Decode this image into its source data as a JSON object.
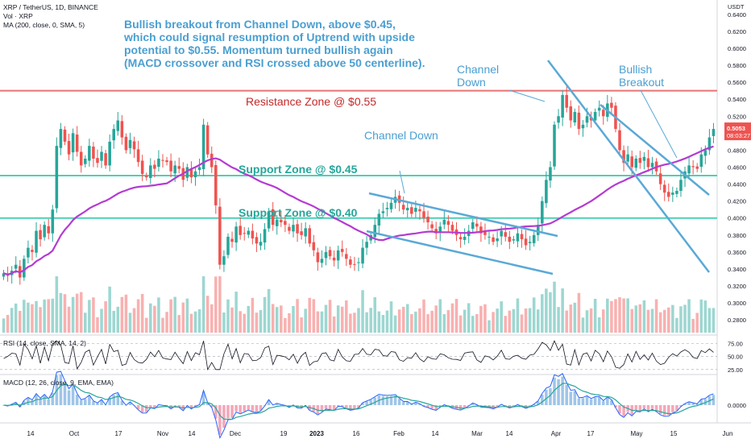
{
  "header": {
    "symbol_line": "XRP / TetherUS, 1D, BINANCE",
    "volume_line": "Vol · XRP",
    "ma_line": "MA (200, close, 0, SMA, 5)",
    "rsi_line": "RSI (14, close, SMA, 14, 2)",
    "macd_line": "MACD (12, 26, close, 9, EMA, EMA)"
  },
  "annotations": {
    "main_text": [
      "Bullish breakout from Channel Down, above $0.45,",
      "which could signal resumption of Uptrend with upside",
      "potential to $0.55. Momentum turned bullish again",
      "(MACD crossover and RSI crossed above 50 centerline)."
    ],
    "resistance_label": "Resistance Zone @ $0.55",
    "support_045_label": "Support Zone @ $0.45",
    "support_040_label": "Support Zone @ $0.40",
    "channel_down_1": "Channel Down",
    "channel_down_2": [
      "Channel",
      "Down"
    ],
    "bullish_breakout": [
      "Bullish",
      "Breakout"
    ]
  },
  "price_tag": {
    "value": "0.5053",
    "countdown": "08:03:27"
  },
  "colors": {
    "up": "#26a69a",
    "down": "#ef5350",
    "ma": "#b43bd1",
    "resistance": "#e57373",
    "support": "#4dd0b6",
    "channel": "#5aa9d6",
    "annot": "#4a9fd1",
    "resistance_text": "#c62828",
    "support_text": "#26a69a"
  },
  "chart_data": {
    "type": "candlestick",
    "currency_unit": "USDT",
    "y_ticks": [
      "0.6400",
      "0.6200",
      "0.6000",
      "0.5800",
      "0.5600",
      "0.5400",
      "0.5200",
      "0.5000",
      "0.4800",
      "0.4600",
      "0.4400",
      "0.4200",
      "0.4000",
      "0.3800",
      "0.3600",
      "0.3400",
      "0.3200",
      "0.3000",
      "0.2800"
    ],
    "ylim": [
      0.265,
      0.655
    ],
    "rsi_ticks": [
      "75.00",
      "50.00",
      "25.00"
    ],
    "macd_ticks": [
      "0.0000"
    ],
    "x_ticks": [
      "14",
      "Oct",
      "17",
      "Nov",
      "14",
      "Dec",
      "19",
      "2023",
      "16",
      "Feb",
      "14",
      "Mar",
      "14",
      "Apr",
      "17",
      "May",
      "15",
      "Jun"
    ],
    "levels": {
      "resistance": 0.55,
      "support_high": 0.45,
      "support_low": 0.4
    },
    "close": [
      0.335,
      0.332,
      0.338,
      0.345,
      0.33,
      0.352,
      0.365,
      0.36,
      0.385,
      0.375,
      0.392,
      0.382,
      0.41,
      0.485,
      0.505,
      0.49,
      0.475,
      0.5,
      0.478,
      0.462,
      0.47,
      0.485,
      0.47,
      0.465,
      0.478,
      0.462,
      0.49,
      0.505,
      0.515,
      0.495,
      0.48,
      0.492,
      0.481,
      0.466,
      0.452,
      0.448,
      0.462,
      0.458,
      0.47,
      0.468,
      0.466,
      0.455,
      0.462,
      0.458,
      0.445,
      0.46,
      0.448,
      0.455,
      0.46,
      0.51,
      0.475,
      0.46,
      0.415,
      0.345,
      0.355,
      0.378,
      0.372,
      0.39,
      0.38,
      0.382,
      0.385,
      0.376,
      0.37,
      0.372,
      0.387,
      0.408,
      0.392,
      0.398,
      0.395,
      0.392,
      0.385,
      0.392,
      0.382,
      0.38,
      0.388,
      0.37,
      0.362,
      0.348,
      0.352,
      0.36,
      0.355,
      0.35,
      0.362,
      0.36,
      0.352,
      0.345,
      0.345,
      0.348,
      0.365,
      0.372,
      0.38,
      0.392,
      0.405,
      0.408,
      0.412,
      0.418,
      0.425,
      0.418,
      0.41,
      0.412,
      0.405,
      0.412,
      0.408,
      0.4,
      0.395,
      0.388,
      0.382,
      0.39,
      0.398,
      0.392,
      0.385,
      0.38,
      0.375,
      0.378,
      0.385,
      0.395,
      0.39,
      0.382,
      0.38,
      0.378,
      0.372,
      0.376,
      0.385,
      0.378,
      0.372,
      0.375,
      0.382,
      0.375,
      0.368,
      0.372,
      0.38,
      0.392,
      0.42,
      0.445,
      0.46,
      0.51,
      0.52,
      0.545,
      0.53,
      0.515,
      0.525,
      0.505,
      0.51,
      0.52,
      0.515,
      0.525,
      0.53,
      0.52,
      0.535,
      0.53,
      0.505,
      0.48,
      0.465,
      0.475,
      0.46,
      0.47,
      0.465,
      0.472,
      0.46,
      0.465,
      0.455,
      0.44,
      0.43,
      0.425,
      0.43,
      0.432,
      0.445,
      0.455,
      0.462,
      0.46,
      0.458,
      0.475,
      0.48,
      0.495,
      0.505
    ]
  }
}
